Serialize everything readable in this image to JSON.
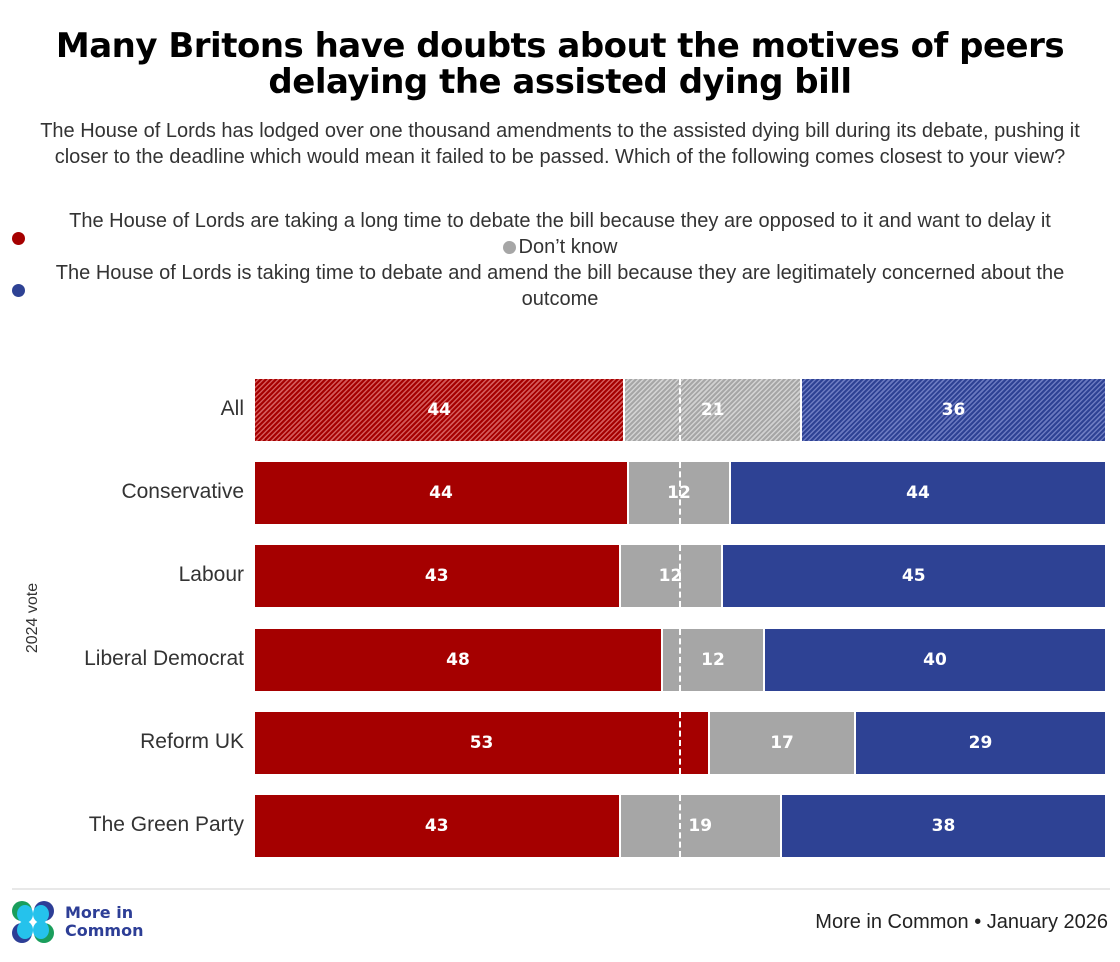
{
  "title": "Many Britons have doubts about the motives of peers delaying the assisted dying bill",
  "subtitle": "The House of Lords has lodged over one thousand amendments to the assisted dying bill during its debate, pushing it closer to the deadline which would mean it failed to be passed. Which of the following comes closest to your view?",
  "legend": [
    {
      "label": "The House of Lords are taking a long time to debate the bill because they are opposed to it and want to delay it",
      "color": "#a50000"
    },
    {
      "label": "Don’t know",
      "color": "#a6a6a6"
    },
    {
      "label": "The House of Lords is taking time to debate and amend the bill because they are legitimately concerned about the outcome",
      "color": "#2e4294"
    }
  ],
  "footer": {
    "logo_line1": "More in",
    "logo_line2": "Common",
    "source": "More in Common • January 2026"
  },
  "chart_data": {
    "type": "bar",
    "orientation": "horizontal",
    "stacked": true,
    "title": "Many Britons have doubts about the motives of peers delaying the assisted dying bill",
    "ylabel": "2024 vote",
    "xlabel": "",
    "xlim": [
      0,
      100
    ],
    "reference_line": 50,
    "categories": [
      "All",
      "Conservative",
      "Labour",
      "Liberal Democrat",
      "Reform UK",
      "The Green Party"
    ],
    "highlighted_category": "All",
    "series": [
      {
        "name": "The House of Lords are taking a long time to debate the bill because they are opposed to it and want to delay it",
        "color": "#a50000",
        "values": [
          44,
          44,
          43,
          48,
          53,
          43
        ]
      },
      {
        "name": "Don’t know",
        "color": "#a6a6a6",
        "values": [
          21,
          12,
          12,
          12,
          17,
          19
        ]
      },
      {
        "name": "The House of Lords is taking time to debate and amend the bill because they are legitimately concerned about the outcome",
        "color": "#2e4294",
        "values": [
          36,
          44,
          45,
          40,
          29,
          38
        ]
      }
    ],
    "legend_position": "top",
    "grid": false
  }
}
